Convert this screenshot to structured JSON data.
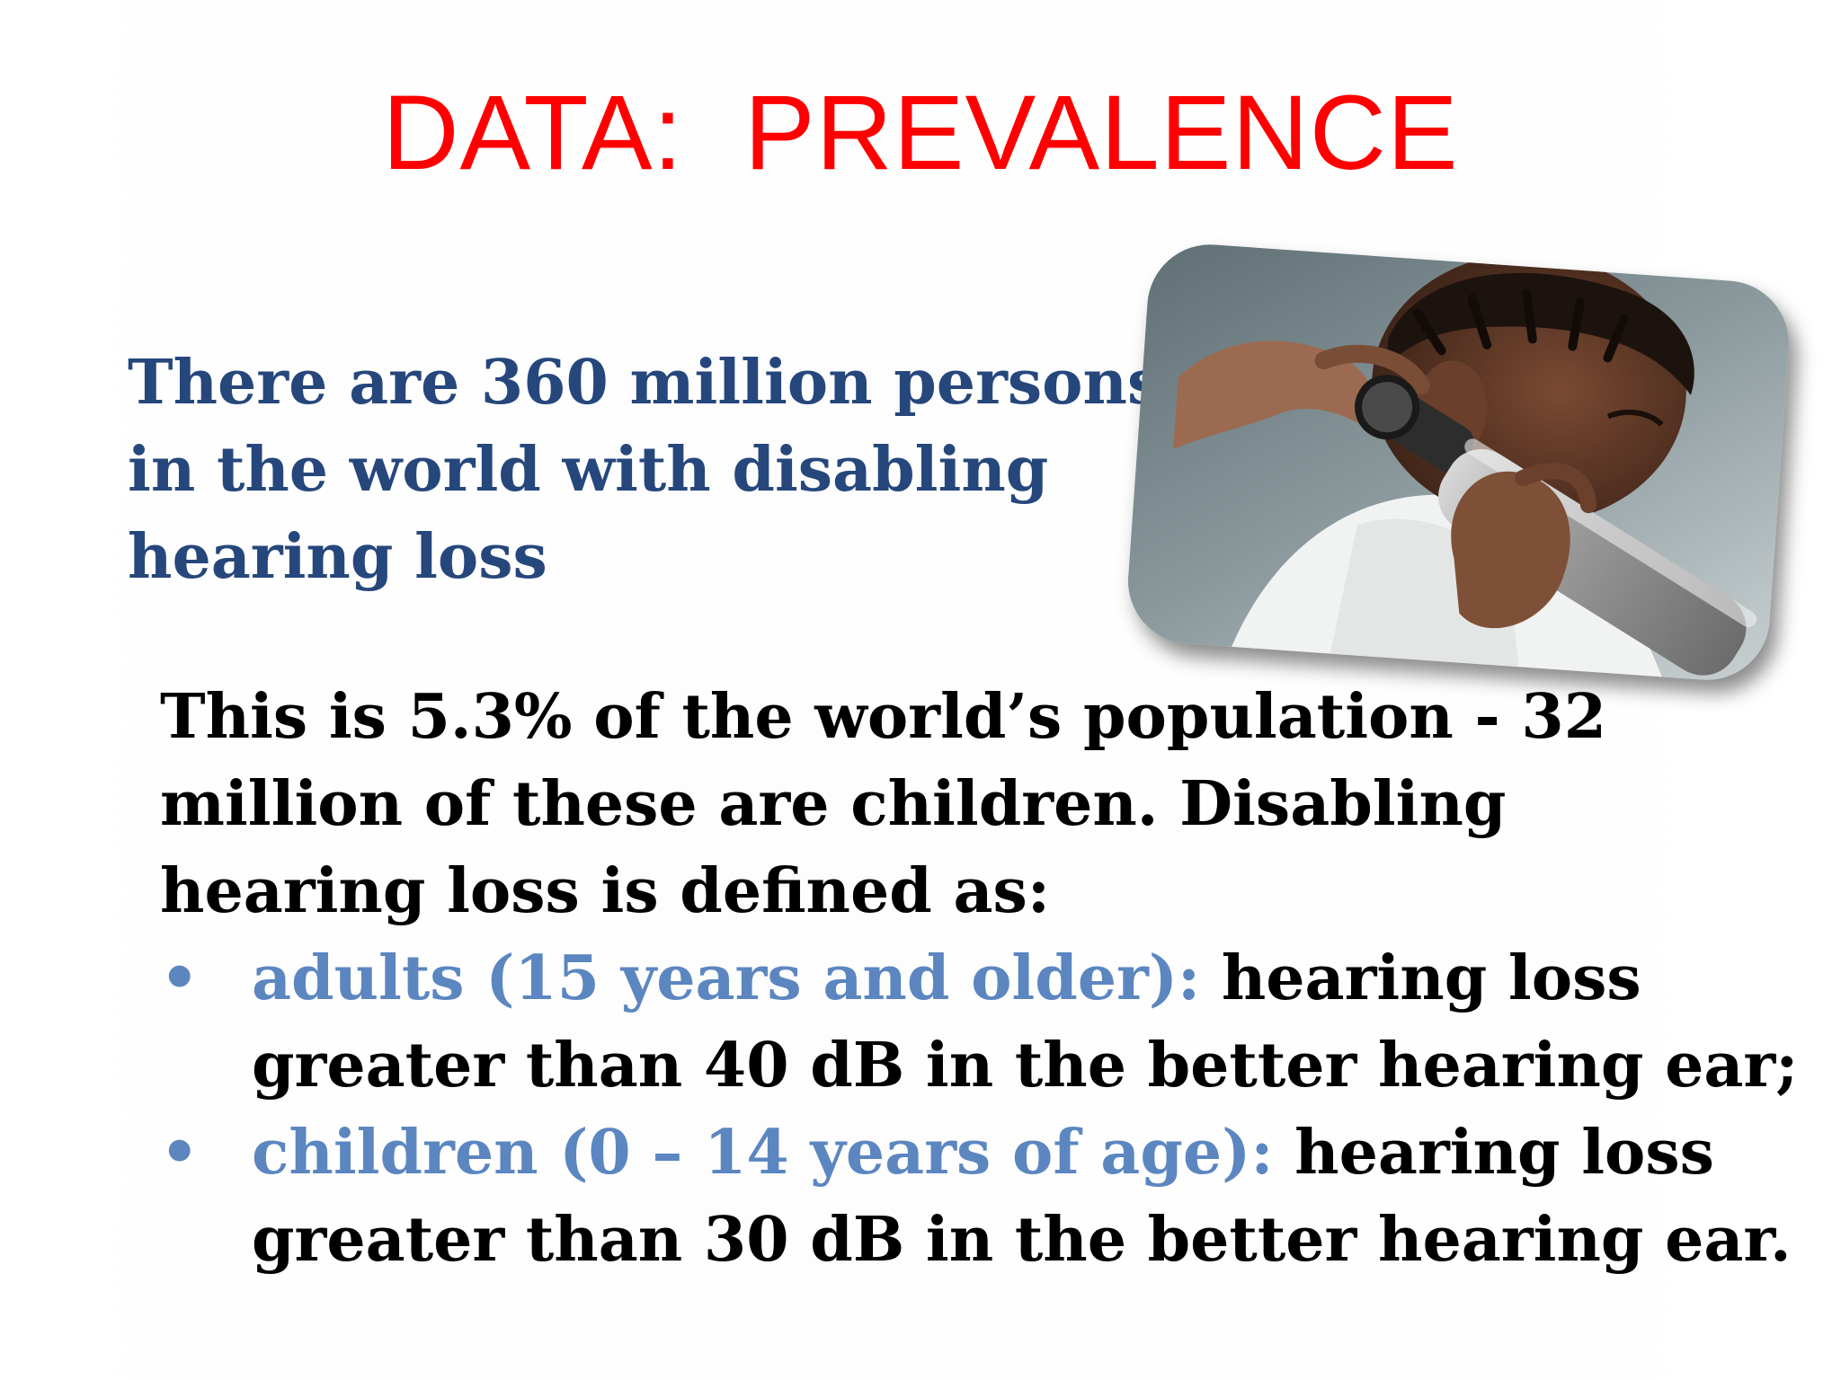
{
  "slide": {
    "title": "DATA:  PREVALENCE",
    "intro_lines": [
      "There are 360 million persons",
      "in the world with disabling",
      "hearing loss"
    ],
    "body_lines": [
      "This is 5.3% of the world’s population - 32",
      "million of these are children. Disabling",
      "hearing loss is defined as:"
    ],
    "bullets": [
      {
        "marker": "•",
        "term": "adults (15 years and older):",
        "text_first": " hearing loss",
        "text_second": "greater than 40 dB in the better hearing ear;"
      },
      {
        "marker": "•",
        "term": "children (0 – 14 years of age):",
        "text_first": " hearing loss",
        "text_second": "greater than 30 dB in the better hearing ear."
      }
    ],
    "colors": {
      "title": "#ff0000",
      "intro": "#26477c",
      "term": "#5b86c0",
      "body": "#000000"
    },
    "image": {
      "name": "ear-examination-photo"
    }
  }
}
